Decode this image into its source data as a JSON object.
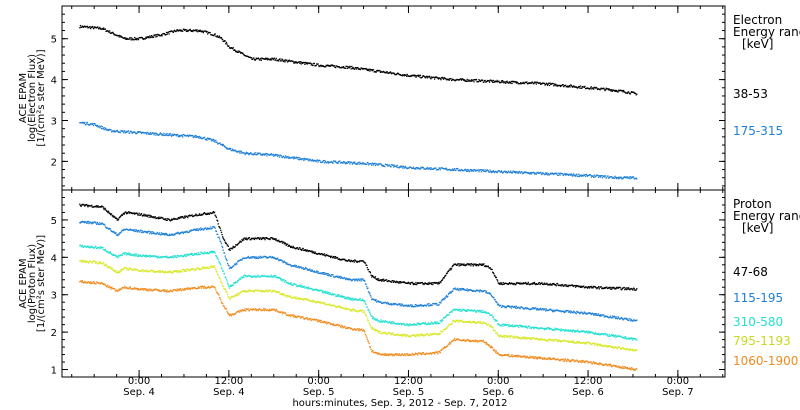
{
  "chart_data": [
    {
      "type": "scatter",
      "panel": "electron",
      "ylabel": [
        "ACE EPAM",
        "log(Electron Flux)",
        "[1/(cm²s ster MeV)]"
      ],
      "ylim": [
        1.3,
        5.8
      ],
      "yticks": [
        2,
        3,
        4,
        5
      ],
      "legend_title": [
        "Electron",
        "Energy range",
        "[keV]"
      ],
      "legend_position": "right",
      "series": [
        {
          "name": "38-53",
          "color": "#000000",
          "points": [
            [
              -8,
              5.3
            ],
            [
              -5,
              5.25
            ],
            [
              -2,
              5.0
            ],
            [
              0,
              5.0
            ],
            [
              3,
              5.1
            ],
            [
              5,
              5.2
            ],
            [
              8,
              5.2
            ],
            [
              10,
              5.1
            ],
            [
              11,
              5.0
            ],
            [
              12,
              4.8
            ],
            [
              14,
              4.6
            ],
            [
              15,
              4.5
            ],
            [
              18,
              4.5
            ],
            [
              20,
              4.45
            ],
            [
              24,
              4.35
            ],
            [
              28,
              4.3
            ],
            [
              30,
              4.25
            ],
            [
              36,
              4.1
            ],
            [
              42,
              4.0
            ],
            [
              48,
              3.95
            ],
            [
              54,
              3.9
            ],
            [
              60,
              3.8
            ],
            [
              63,
              3.75
            ],
            [
              65,
              3.7
            ],
            [
              66.5,
              3.65
            ]
          ]
        },
        {
          "name": "175-315",
          "color": "#1e7fd6",
          "points": [
            [
              -8,
              2.95
            ],
            [
              -6,
              2.9
            ],
            [
              -4,
              2.75
            ],
            [
              0,
              2.7
            ],
            [
              4,
              2.65
            ],
            [
              8,
              2.6
            ],
            [
              10,
              2.5
            ],
            [
              12,
              2.3
            ],
            [
              14,
              2.2
            ],
            [
              18,
              2.15
            ],
            [
              24,
              2.0
            ],
            [
              30,
              1.95
            ],
            [
              36,
              1.85
            ],
            [
              42,
              1.8
            ],
            [
              48,
              1.75
            ],
            [
              54,
              1.7
            ],
            [
              60,
              1.65
            ],
            [
              64,
              1.6
            ],
            [
              66.5,
              1.6
            ]
          ]
        }
      ]
    },
    {
      "type": "scatter",
      "panel": "proton",
      "ylabel": [
        "ACE EPAM",
        "log(Proton Flux)",
        "[1/(cm²s ster MeV)]"
      ],
      "ylim": [
        0.8,
        5.8
      ],
      "yticks": [
        1,
        2,
        3,
        4,
        5
      ],
      "legend_title": [
        "Proton",
        "Energy range",
        "[keV]"
      ],
      "legend_position": "right",
      "xlabel": "hours:minutes, Sep.  3, 2012 - Sep.  7, 2012",
      "xticks": [
        {
          "t": 0,
          "time": "0:00",
          "date": "Sep. 4"
        },
        {
          "t": 12,
          "time": "12:00",
          "date": "Sep. 4"
        },
        {
          "t": 24,
          "time": "0:00",
          "date": "Sep. 5"
        },
        {
          "t": 36,
          "time": "12:00",
          "date": "Sep. 5"
        },
        {
          "t": 48,
          "time": "0:00",
          "date": "Sep. 6"
        },
        {
          "t": 60,
          "time": "12:00",
          "date": "Sep. 6"
        },
        {
          "t": 72,
          "time": "0:00",
          "date": "Sep. 7"
        }
      ],
      "series": [
        {
          "name": "47-68",
          "color": "#000000",
          "points": [
            [
              -8,
              5.4
            ],
            [
              -5,
              5.35
            ],
            [
              -3,
              5.0
            ],
            [
              -2,
              5.2
            ],
            [
              0,
              5.15
            ],
            [
              4,
              5.0
            ],
            [
              8,
              5.15
            ],
            [
              10,
              5.2
            ],
            [
              11,
              4.6
            ],
            [
              12,
              4.2
            ],
            [
              14,
              4.5
            ],
            [
              18,
              4.5
            ],
            [
              20,
              4.3
            ],
            [
              24,
              4.1
            ],
            [
              28,
              3.9
            ],
            [
              30,
              3.9
            ],
            [
              31,
              3.5
            ],
            [
              32,
              3.4
            ],
            [
              36,
              3.3
            ],
            [
              40,
              3.3
            ],
            [
              42,
              3.8
            ],
            [
              46,
              3.8
            ],
            [
              47,
              3.7
            ],
            [
              48,
              3.3
            ],
            [
              54,
              3.3
            ],
            [
              60,
              3.2
            ],
            [
              66.5,
              3.15
            ]
          ]
        },
        {
          "name": "115-195",
          "color": "#1e7fd6",
          "points": [
            [
              -8,
              4.95
            ],
            [
              -5,
              4.9
            ],
            [
              -3,
              4.6
            ],
            [
              -2,
              4.75
            ],
            [
              0,
              4.7
            ],
            [
              4,
              4.6
            ],
            [
              8,
              4.75
            ],
            [
              10,
              4.8
            ],
            [
              11,
              4.3
            ],
            [
              12,
              3.7
            ],
            [
              14,
              4.0
            ],
            [
              18,
              4.0
            ],
            [
              20,
              3.8
            ],
            [
              24,
              3.6
            ],
            [
              28,
              3.4
            ],
            [
              30,
              3.4
            ],
            [
              31,
              2.9
            ],
            [
              32,
              2.8
            ],
            [
              36,
              2.7
            ],
            [
              40,
              2.75
            ],
            [
              42,
              3.15
            ],
            [
              46,
              3.1
            ],
            [
              47,
              3.0
            ],
            [
              48,
              2.7
            ],
            [
              54,
              2.6
            ],
            [
              60,
              2.5
            ],
            [
              66.5,
              2.3
            ]
          ]
        },
        {
          "name": "310-580",
          "color": "#22e0d0",
          "points": [
            [
              -8,
              4.3
            ],
            [
              -5,
              4.25
            ],
            [
              -3,
              4.0
            ],
            [
              -2,
              4.1
            ],
            [
              0,
              4.05
            ],
            [
              4,
              4.0
            ],
            [
              8,
              4.1
            ],
            [
              10,
              4.15
            ],
            [
              11,
              3.7
            ],
            [
              12,
              3.2
            ],
            [
              14,
              3.5
            ],
            [
              18,
              3.5
            ],
            [
              20,
              3.3
            ],
            [
              24,
              3.1
            ],
            [
              28,
              2.9
            ],
            [
              30,
              2.85
            ],
            [
              31,
              2.4
            ],
            [
              32,
              2.3
            ],
            [
              36,
              2.2
            ],
            [
              40,
              2.25
            ],
            [
              42,
              2.6
            ],
            [
              46,
              2.55
            ],
            [
              47,
              2.45
            ],
            [
              48,
              2.2
            ],
            [
              54,
              2.1
            ],
            [
              60,
              2.0
            ],
            [
              66.5,
              1.8
            ]
          ]
        },
        {
          "name": "795-1193",
          "color": "#d8e82a",
          "points": [
            [
              -8,
              3.9
            ],
            [
              -5,
              3.85
            ],
            [
              -3,
              3.6
            ],
            [
              -2,
              3.7
            ],
            [
              0,
              3.65
            ],
            [
              4,
              3.6
            ],
            [
              8,
              3.7
            ],
            [
              10,
              3.75
            ],
            [
              11,
              3.3
            ],
            [
              12,
              2.9
            ],
            [
              14,
              3.1
            ],
            [
              18,
              3.1
            ],
            [
              20,
              2.95
            ],
            [
              24,
              2.8
            ],
            [
              28,
              2.6
            ],
            [
              30,
              2.55
            ],
            [
              31,
              2.1
            ],
            [
              32,
              2.0
            ],
            [
              36,
              1.9
            ],
            [
              40,
              1.95
            ],
            [
              42,
              2.3
            ],
            [
              46,
              2.25
            ],
            [
              47,
              2.15
            ],
            [
              48,
              1.9
            ],
            [
              54,
              1.8
            ],
            [
              60,
              1.7
            ],
            [
              66.5,
              1.5
            ]
          ]
        },
        {
          "name": "1060-1900",
          "color": "#f08a1c",
          "points": [
            [
              -8,
              3.35
            ],
            [
              -5,
              3.3
            ],
            [
              -3,
              3.1
            ],
            [
              -2,
              3.2
            ],
            [
              0,
              3.15
            ],
            [
              4,
              3.1
            ],
            [
              8,
              3.2
            ],
            [
              10,
              3.2
            ],
            [
              11,
              2.8
            ],
            [
              12,
              2.45
            ],
            [
              14,
              2.6
            ],
            [
              18,
              2.6
            ],
            [
              20,
              2.45
            ],
            [
              24,
              2.3
            ],
            [
              28,
              2.1
            ],
            [
              30,
              2.05
            ],
            [
              31,
              1.5
            ],
            [
              32,
              1.4
            ],
            [
              36,
              1.4
            ],
            [
              40,
              1.45
            ],
            [
              42,
              1.8
            ],
            [
              46,
              1.75
            ],
            [
              47,
              1.6
            ],
            [
              48,
              1.4
            ],
            [
              54,
              1.3
            ],
            [
              60,
              1.2
            ],
            [
              66.5,
              1.0
            ]
          ]
        }
      ]
    }
  ]
}
